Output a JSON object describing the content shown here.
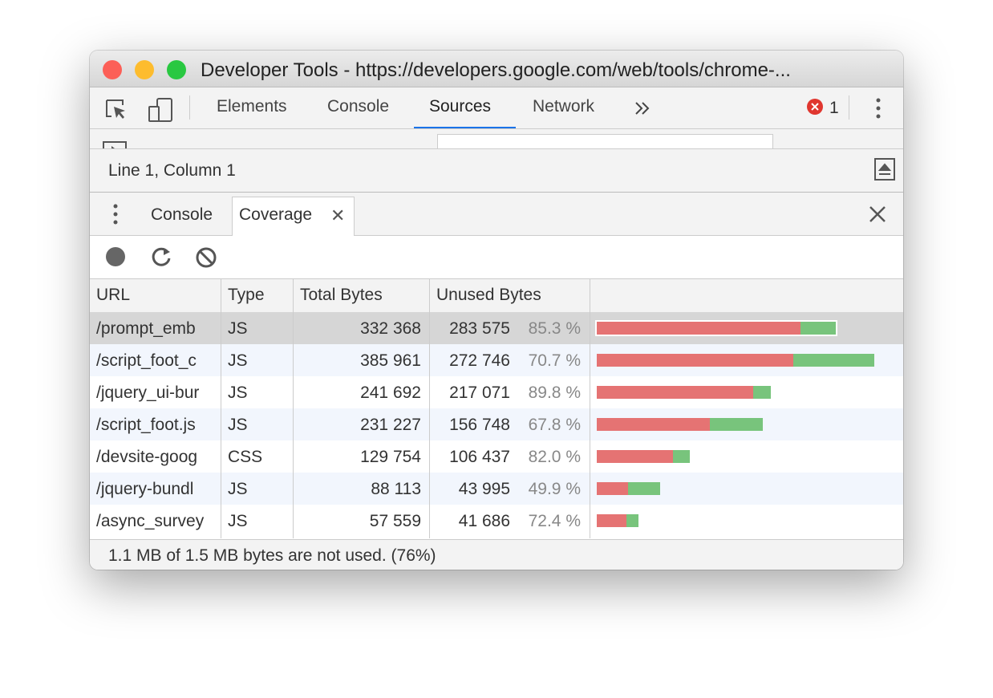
{
  "window": {
    "title": "Developer Tools - https://developers.google.com/web/tools/chrome-..."
  },
  "toolbar": {
    "tabs": [
      "Elements",
      "Console",
      "Sources",
      "Network"
    ],
    "selected_tab": "Sources",
    "error_count": "1"
  },
  "editor": {
    "cursor_position": "Line 1, Column 1"
  },
  "drawer": {
    "tabs": [
      "Console",
      "Coverage"
    ],
    "selected_tab": "Coverage"
  },
  "table": {
    "columns": [
      "URL",
      "Type",
      "Total Bytes",
      "Unused Bytes"
    ],
    "rows": [
      {
        "url": "/prompt_emb",
        "type": "JS",
        "total_bytes": "332 368",
        "unused_bytes": "283 575",
        "unused_percent": "85.3 %"
      },
      {
        "url": "/script_foot_c",
        "type": "JS",
        "total_bytes": "385 961",
        "unused_bytes": "272 746",
        "unused_percent": "70.7 %"
      },
      {
        "url": "/jquery_ui-bur",
        "type": "JS",
        "total_bytes": "241 692",
        "unused_bytes": "217 071",
        "unused_percent": "89.8 %"
      },
      {
        "url": "/script_foot.js",
        "type": "JS",
        "total_bytes": "231 227",
        "unused_bytes": "156 748",
        "unused_percent": "67.8 %"
      },
      {
        "url": "/devsite-goog",
        "type": "CSS",
        "total_bytes": "129 754",
        "unused_bytes": "106 437",
        "unused_percent": "82.0 %"
      },
      {
        "url": "/jquery-bundl",
        "type": "JS",
        "total_bytes": "88 113",
        "unused_bytes": "43 995",
        "unused_percent": "49.9 %"
      },
      {
        "url": "/async_survey",
        "type": "JS",
        "total_bytes": "57 559",
        "unused_bytes": "41 686",
        "unused_percent": "72.4 %"
      }
    ],
    "selected_row": 0
  },
  "footer": {
    "summary": "1.1 MB of 1.5 MB bytes are not used. (76%)"
  }
}
